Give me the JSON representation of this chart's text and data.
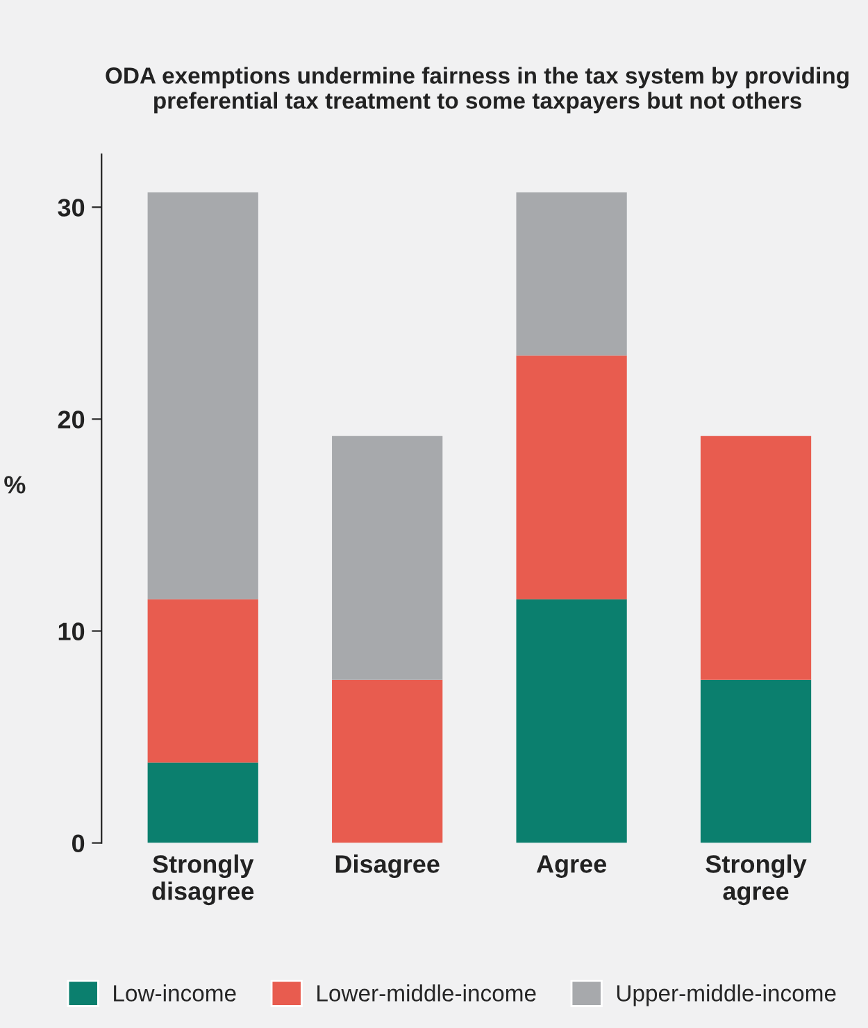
{
  "chart_data": {
    "type": "bar",
    "title": "ODA exemptions undermine fairness in the tax system by providing\npreferential tax treatment to some taxpayers but not others",
    "ylabel": "%",
    "categories": [
      "Strongly\ndisagree",
      "Disagree",
      "Agree",
      "Strongly\nagree"
    ],
    "stacked": true,
    "series": [
      {
        "name": "Low-income",
        "color": "#0b7f6e",
        "values": [
          3.8,
          0,
          11.5,
          7.7
        ]
      },
      {
        "name": "Lower-middle-income",
        "color": "#e85c4f",
        "values": [
          7.7,
          7.7,
          11.5,
          11.5
        ]
      },
      {
        "name": "Upper-middle-income",
        "color": "#a7a9ac",
        "values": [
          19.2,
          11.5,
          7.7,
          0
        ]
      }
    ],
    "ylim": [
      0,
      32.5
    ],
    "yticks": [
      0,
      10,
      20,
      30
    ],
    "grid": false,
    "legend": "bottom"
  }
}
